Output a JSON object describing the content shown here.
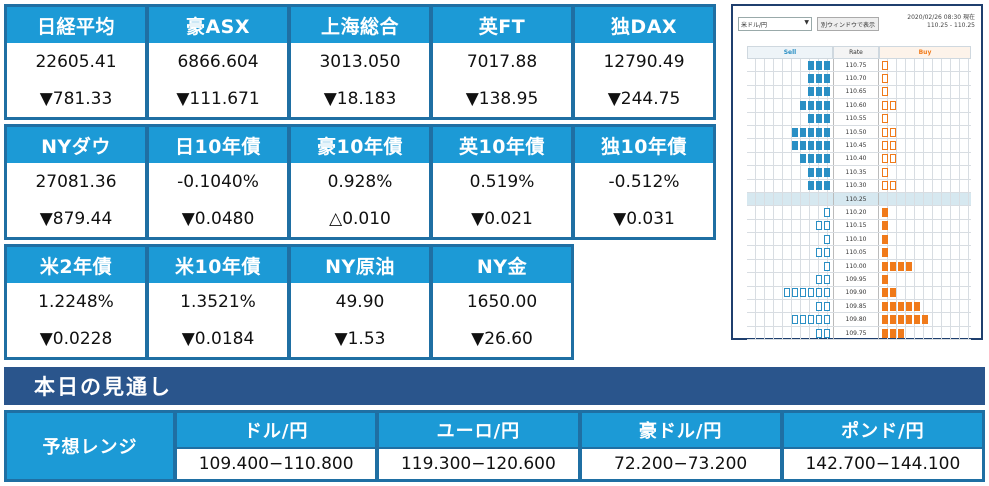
{
  "market_blocks": [
    {
      "cells": [
        {
          "name": "日経平均",
          "value": "22605.41",
          "change": "▼781.33"
        },
        {
          "name": "豪ASX",
          "value": "6866.604",
          "change": "▼111.671"
        },
        {
          "name": "上海総合",
          "value": "3013.050",
          "change": "▼18.183"
        },
        {
          "name": "英FT",
          "value": "7017.88",
          "change": "▼138.95"
        },
        {
          "name": "独DAX",
          "value": "12790.49",
          "change": "▼244.75"
        }
      ]
    },
    {
      "cells": [
        {
          "name": "NYダウ",
          "value": "27081.36",
          "change": "▼879.44"
        },
        {
          "name": "日10年債",
          "value": "-0.1040%",
          "change": "▼0.0480"
        },
        {
          "name": "豪10年債",
          "value": "0.928%",
          "change": "△0.010"
        },
        {
          "name": "英10年債",
          "value": "0.519%",
          "change": "▼0.021"
        },
        {
          "name": "独10年債",
          "value": "-0.512%",
          "change": "▼0.031"
        }
      ]
    },
    {
      "cells": [
        {
          "name": "米2年債",
          "value": "1.2248%",
          "change": "▼0.0228"
        },
        {
          "name": "米10年債",
          "value": "1.3521%",
          "change": "▼0.0184"
        },
        {
          "name": "NY原油",
          "value": "49.90",
          "change": "▼1.53"
        },
        {
          "name": "NY金",
          "value": "1650.00",
          "change": "▼26.60"
        }
      ]
    }
  ],
  "rate_panel": {
    "pair_select": "米ドル/円",
    "popup_button": "別ウィンドウで表示",
    "datetime": "2020/02/26 08:30 現在",
    "range": "110.25 - 110.25",
    "headers": {
      "sell": "Sell",
      "rate": "Rate",
      "buy": "Buy"
    },
    "colors": {
      "sell": "#2a8fc4",
      "buy": "#f07a1a"
    },
    "rows": [
      {
        "rate": "110.75",
        "sell": [
          1,
          1,
          1
        ],
        "buy": [
          0
        ]
      },
      {
        "rate": "110.70",
        "sell": [
          1,
          1,
          1
        ],
        "buy": [
          0
        ]
      },
      {
        "rate": "110.65",
        "sell": [
          1,
          1,
          1
        ],
        "buy": [
          0
        ]
      },
      {
        "rate": "110.60",
        "sell": [
          1,
          1,
          1,
          1
        ],
        "buy": [
          0,
          0
        ]
      },
      {
        "rate": "110.55",
        "sell": [
          1,
          1,
          1
        ],
        "buy": [
          0
        ]
      },
      {
        "rate": "110.50",
        "sell": [
          1,
          1,
          1,
          1,
          1
        ],
        "buy": [
          0,
          0
        ]
      },
      {
        "rate": "110.45",
        "sell": [
          1,
          1,
          1,
          1,
          1
        ],
        "buy": [
          0,
          0
        ]
      },
      {
        "rate": "110.40",
        "sell": [
          1,
          1,
          1,
          1
        ],
        "buy": [
          0,
          0
        ]
      },
      {
        "rate": "110.35",
        "sell": [
          1,
          1,
          1
        ],
        "buy": [
          0
        ]
      },
      {
        "rate": "110.30",
        "sell": [
          1,
          1,
          1
        ],
        "buy": [
          0,
          0
        ]
      },
      {
        "rate": "110.25",
        "sell": [],
        "buy": [],
        "mid": true
      },
      {
        "rate": "110.20",
        "sell": [
          0
        ],
        "buy": [
          1
        ]
      },
      {
        "rate": "110.15",
        "sell": [
          0,
          0
        ],
        "buy": [
          1
        ]
      },
      {
        "rate": "110.10",
        "sell": [
          0
        ],
        "buy": [
          1
        ]
      },
      {
        "rate": "110.05",
        "sell": [
          0,
          0
        ],
        "buy": [
          1
        ]
      },
      {
        "rate": "110.00",
        "sell": [
          0
        ],
        "buy": [
          1,
          1,
          1,
          1
        ]
      },
      {
        "rate": "109.95",
        "sell": [
          0,
          0
        ],
        "buy": [
          1
        ]
      },
      {
        "rate": "109.90",
        "sell": [
          0,
          0,
          0,
          0,
          0,
          0
        ],
        "buy": [
          1,
          1
        ]
      },
      {
        "rate": "109.85",
        "sell": [
          0,
          0
        ],
        "buy": [
          1,
          1,
          1,
          1,
          1
        ]
      },
      {
        "rate": "109.80",
        "sell": [
          0,
          0,
          0,
          0,
          0
        ],
        "buy": [
          1,
          1,
          1,
          1,
          1,
          1
        ]
      },
      {
        "rate": "109.75",
        "sell": [
          0,
          0
        ],
        "buy": [
          1,
          1,
          1
        ]
      }
    ]
  },
  "outlook": {
    "title": "本日の見通し",
    "label": "予想レンジ",
    "pairs": [
      {
        "name": "ドル/円",
        "range": "109.400−110.800"
      },
      {
        "name": "ユーロ/円",
        "range": "119.300−120.600"
      },
      {
        "name": "豪ドル/円",
        "range": "72.200−73.200"
      },
      {
        "name": "ポンド/円",
        "range": "142.700−144.100"
      }
    ]
  }
}
